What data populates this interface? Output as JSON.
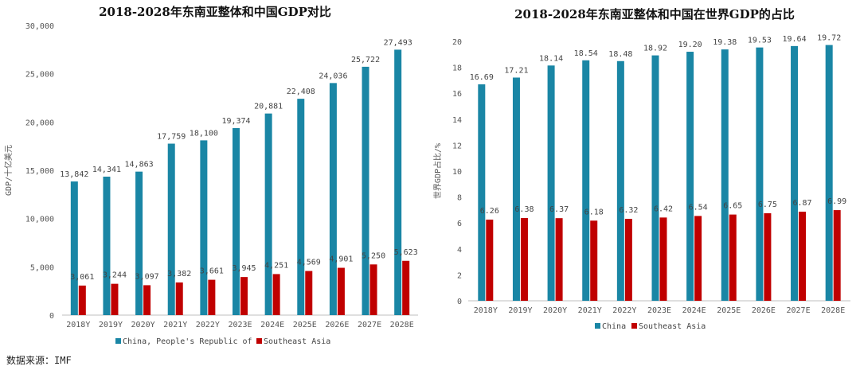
{
  "source": "数据来源：IMF",
  "colors": {
    "china": "#1a86a5",
    "sea": "#c00000",
    "axis": "#bfbfbf"
  },
  "chart_data": [
    {
      "type": "bar",
      "title": "2018-2028年东南亚整体和中国GDP对比",
      "ylabel": "GDP/十亿美元",
      "xlabel": "",
      "ylim": [
        0,
        30000
      ],
      "yticks": [
        "0",
        "5,000",
        "10,000",
        "15,000",
        "20,000",
        "25,000",
        "30,000"
      ],
      "ytick_values": [
        0,
        5000,
        10000,
        15000,
        20000,
        25000,
        30000
      ],
      "categories": [
        "2018Y",
        "2019Y",
        "2020Y",
        "2021Y",
        "2022Y",
        "2023E",
        "2024E",
        "2025E",
        "2026E",
        "2027E",
        "2028E"
      ],
      "series": [
        {
          "name": "China, People's Republic of",
          "values": [
            13842,
            14341,
            14863,
            17759,
            18100,
            19374,
            20881,
            22408,
            24036,
            25722,
            27493
          ],
          "labels": [
            "13,842",
            "14,341",
            "14,863",
            "17,759",
            "18,100",
            "19,374",
            "20,881",
            "22,408",
            "24,036",
            "25,722",
            "27,493"
          ]
        },
        {
          "name": "Southeast Asia",
          "values": [
            3061,
            3244,
            3097,
            3382,
            3661,
            3945,
            4251,
            4569,
            4901,
            5250,
            5623
          ],
          "labels": [
            "3,061",
            "3,244",
            "3,097",
            "3,382",
            "3,661",
            "3,945",
            "4,251",
            "4,569",
            "4,901",
            "5,250",
            "5,623"
          ]
        }
      ],
      "legend_position": "bottom"
    },
    {
      "type": "bar",
      "title": "2018-2028年东南亚整体和中国在世界GDP的占比",
      "ylabel": "世界GDP占比/%",
      "xlabel": "",
      "ylim": [
        0,
        20
      ],
      "yticks": [
        "0",
        "2",
        "4",
        "6",
        "8",
        "10",
        "12",
        "14",
        "16",
        "18",
        "20"
      ],
      "ytick_values": [
        0,
        2,
        4,
        6,
        8,
        10,
        12,
        14,
        16,
        18,
        20
      ],
      "categories": [
        "2018Y",
        "2019Y",
        "2020Y",
        "2021Y",
        "2022Y",
        "2023E",
        "2024E",
        "2025E",
        "2026E",
        "2027E",
        "2028E"
      ],
      "series": [
        {
          "name": "China",
          "values": [
            16.69,
            17.21,
            18.14,
            18.54,
            18.48,
            18.92,
            19.2,
            19.38,
            19.53,
            19.64,
            19.72
          ],
          "labels": [
            "16.69",
            "17.21",
            "18.14",
            "18.54",
            "18.48",
            "18.92",
            "19.20",
            "19.38",
            "19.53",
            "19.64",
            "19.72"
          ]
        },
        {
          "name": "Southeast Asia",
          "values": [
            6.26,
            6.38,
            6.37,
            6.18,
            6.32,
            6.42,
            6.54,
            6.65,
            6.75,
            6.87,
            6.99
          ],
          "labels": [
            "6.26",
            "6.38",
            "6.37",
            "6.18",
            "6.32",
            "6.42",
            "6.54",
            "6.65",
            "6.75",
            "6.87",
            "6.99"
          ]
        }
      ],
      "legend_position": "bottom"
    }
  ]
}
